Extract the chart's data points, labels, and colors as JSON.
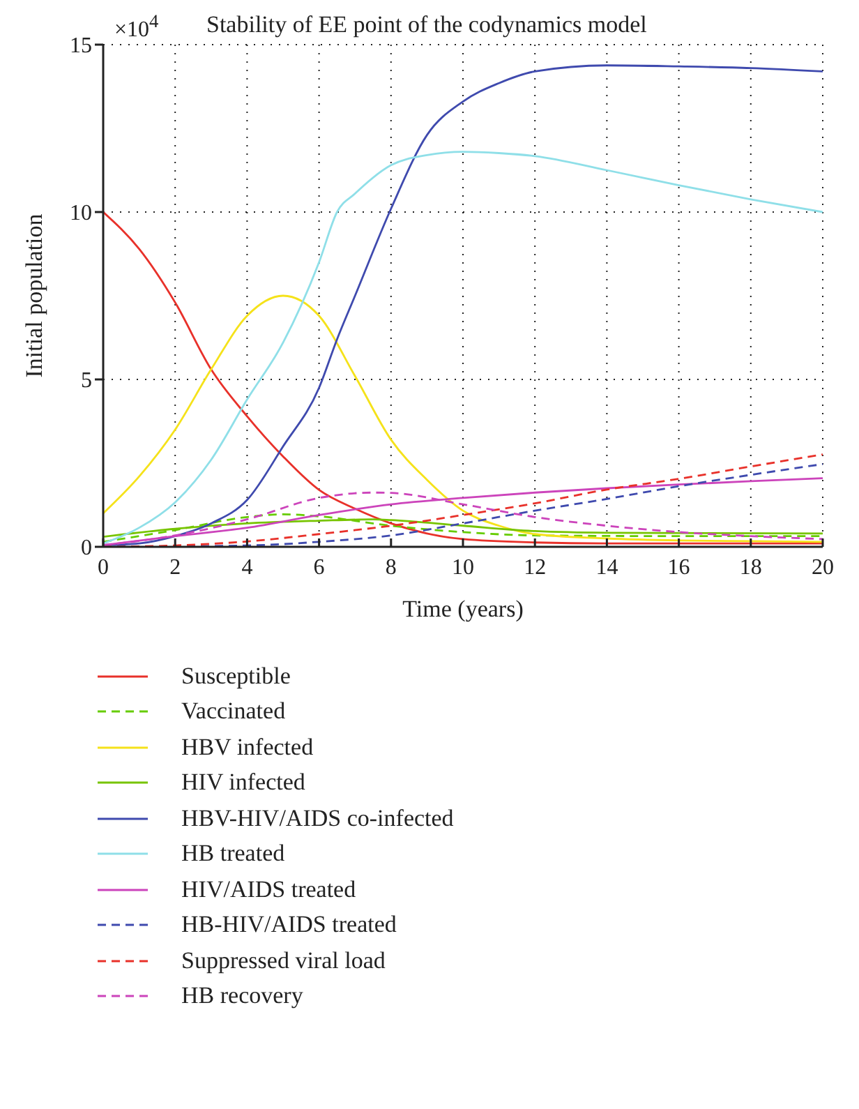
{
  "chart_data": {
    "type": "line",
    "title": "Stability of EE point of the codynamics model",
    "xlabel": "Time (years)",
    "ylabel": "Initial population",
    "annotations": [
      "×10$^{4}$"
    ],
    "xlim": [
      0,
      20
    ],
    "xticks": [
      0,
      2,
      4,
      6,
      8,
      10,
      12,
      14,
      16,
      18,
      20
    ],
    "ylim": [
      0,
      15
    ],
    "yticks": [
      0,
      5,
      10,
      15
    ],
    "grid": true,
    "legend": "bottom",
    "marker": "none",
    "series": [
      {
        "name": "Susceptible",
        "color": "#e8312a",
        "line_style": "solid",
        "x": [
          0,
          1,
          2,
          3,
          4,
          5,
          6,
          7,
          8,
          10,
          12,
          14,
          16,
          18,
          20
        ],
        "values": [
          10,
          8.9,
          7.3,
          5.3,
          3.9,
          2.7,
          1.7,
          1.14,
          0.7,
          0.23,
          0.13,
          0.1,
          0.1,
          0.1,
          0.1
        ]
      },
      {
        "name": "Vaccinated",
        "color": "#66cc00",
        "line_style": "dashed",
        "x": [
          0,
          2,
          4,
          5,
          6,
          8,
          10,
          12,
          16,
          20
        ],
        "values": [
          0.15,
          0.5,
          0.89,
          0.97,
          0.91,
          0.63,
          0.44,
          0.34,
          0.32,
          0.32
        ]
      },
      {
        "name": "HBV infected",
        "color": "#f5e21a",
        "line_style": "solid",
        "x": [
          0,
          1,
          2,
          3,
          4,
          5,
          6,
          7,
          8,
          9,
          10,
          11,
          12,
          14,
          16,
          18,
          20
        ],
        "values": [
          1.0,
          2.1,
          3.5,
          5.3,
          6.9,
          7.5,
          6.9,
          5.1,
          3.2,
          2.0,
          1.08,
          0.63,
          0.38,
          0.25,
          0.19,
          0.17,
          0.15
        ]
      },
      {
        "name": "HIV infected",
        "color": "#77c400",
        "line_style": "solid",
        "x": [
          0,
          2,
          4,
          6,
          7.5,
          8,
          10,
          12,
          14,
          20
        ],
        "values": [
          0.3,
          0.54,
          0.7,
          0.78,
          0.82,
          0.8,
          0.63,
          0.47,
          0.42,
          0.4
        ]
      },
      {
        "name": "HBV-HIV/AIDS co-infected",
        "color": "#3f4aae",
        "line_style": "solid",
        "x": [
          0,
          1,
          2,
          3,
          4,
          5,
          6,
          6.5,
          7,
          8,
          9,
          10,
          11,
          12,
          14,
          16,
          18,
          20
        ],
        "values": [
          0.05,
          0.1,
          0.32,
          0.7,
          1.4,
          3.0,
          4.75,
          6.2,
          7.5,
          10.1,
          12.3,
          13.3,
          13.85,
          14.2,
          14.38,
          14.35,
          14.3,
          14.2
        ]
      },
      {
        "name": "HB treated",
        "color": "#8fdfe8",
        "line_style": "solid",
        "x": [
          0,
          1,
          2,
          3,
          4,
          5,
          6,
          6.5,
          7,
          8,
          9,
          10,
          11,
          12,
          14,
          16,
          18,
          20
        ],
        "values": [
          0.1,
          0.57,
          1.33,
          2.6,
          4.4,
          6.1,
          8.5,
          10,
          10.55,
          11.4,
          11.7,
          11.8,
          11.76,
          11.67,
          11.25,
          10.8,
          10.38,
          10.0
        ]
      },
      {
        "name": "HIV/AIDS treated",
        "color": "#cc44bb",
        "line_style": "solid",
        "x": [
          0,
          2,
          4,
          6,
          8,
          10,
          12,
          14,
          16,
          18,
          20
        ],
        "values": [
          0.05,
          0.32,
          0.57,
          0.95,
          1.27,
          1.46,
          1.62,
          1.75,
          1.86,
          1.96,
          2.05
        ]
      },
      {
        "name": "HB-HIV/AIDS treated",
        "color": "#3f4aae",
        "line_style": "dashed",
        "x": [
          0,
          4,
          6,
          8,
          10,
          12,
          14,
          16,
          18,
          20
        ],
        "values": [
          0,
          0.04,
          0.15,
          0.34,
          0.7,
          1.08,
          1.43,
          1.81,
          2.15,
          2.47
        ]
      },
      {
        "name": "Suppressed viral load",
        "color": "#e8312a",
        "line_style": "dashed",
        "x": [
          0,
          2,
          4,
          6,
          8,
          10,
          12,
          14,
          16,
          18,
          20
        ],
        "values": [
          0,
          0.04,
          0.16,
          0.38,
          0.63,
          0.95,
          1.3,
          1.71,
          2.03,
          2.4,
          2.76
        ]
      },
      {
        "name": "HB recovery",
        "color": "#cc44bb",
        "line_style": "dashed",
        "x": [
          0,
          2,
          4,
          6,
          7.5,
          8,
          10,
          12,
          14,
          16,
          18,
          20
        ],
        "values": [
          0.05,
          0.34,
          0.82,
          1.46,
          1.62,
          1.61,
          1.27,
          0.89,
          0.63,
          0.44,
          0.32,
          0.23
        ]
      }
    ]
  }
}
